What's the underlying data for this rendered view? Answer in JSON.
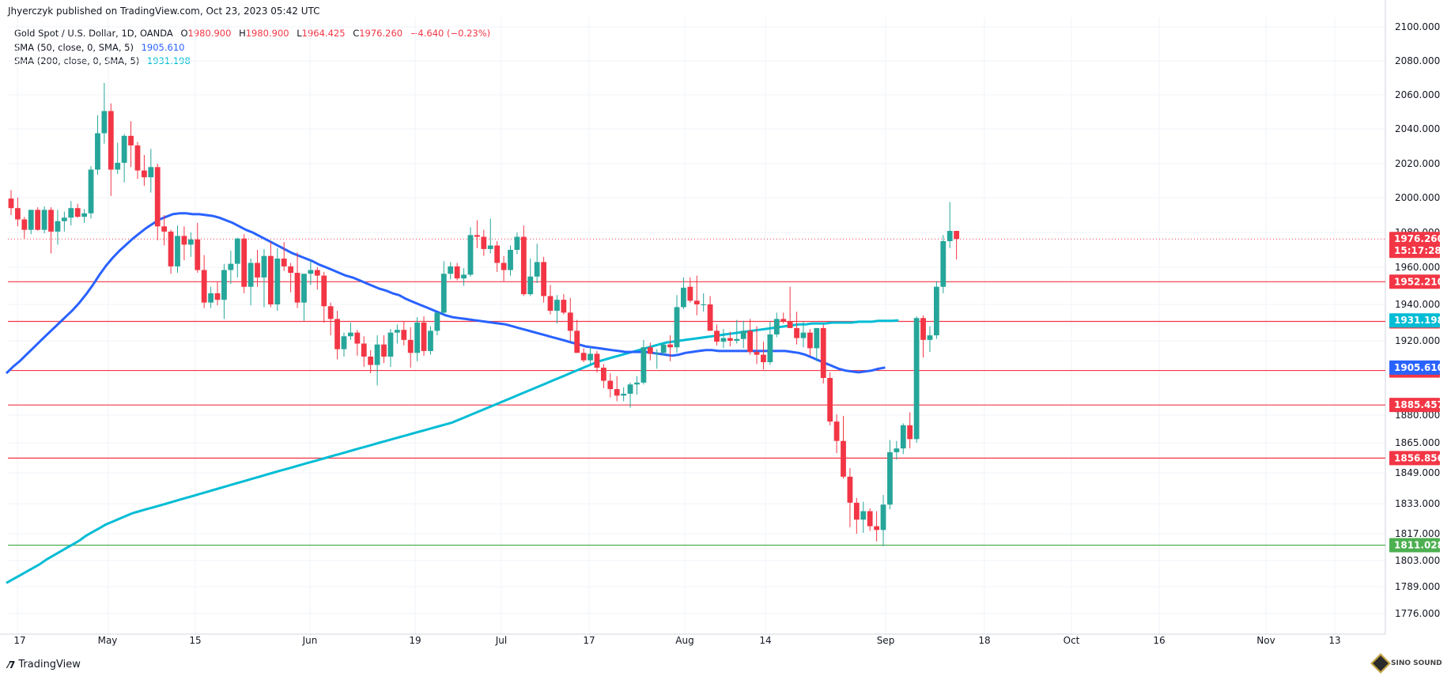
{
  "header": {
    "publisher": "Jhyerczyk published on TradingView.com, Oct 23, 2023 05:42 UTC"
  },
  "legend": {
    "symbol": "Gold Spot / U.S. Dollar, 1D, OANDA",
    "o_label": "O",
    "o_value": "1980.900",
    "h_label": "H",
    "h_value": "1980.900",
    "l_label": "L",
    "l_value": "1964.425",
    "c_label": "C",
    "c_value": "1976.260",
    "change": "−4.640 (−0.23%)",
    "sma50_label": "SMA (50, close, 0, SMA, 5)",
    "sma50_value": "1905.610",
    "sma200_label": "SMA (200, close, 0, SMA, 5)",
    "sma200_value": "1931.198"
  },
  "footer": {
    "brand": "TradingView",
    "watermark": "SINO SOUND"
  },
  "colors": {
    "up": "#26a69a",
    "down": "#f23645",
    "sma50": "#2962ff",
    "sma200": "#00bcd4",
    "level": "#f23645",
    "support": "#4caf50",
    "grid": "#f0f3fa"
  },
  "chart_data": {
    "type": "candlestick",
    "ylim": [
      1770,
      2105
    ],
    "y_ticks": [
      "2100.000",
      "2080.000",
      "2060.000",
      "2040.000",
      "2020.000",
      "2000.000",
      "1980.000",
      "1960.000",
      "1940.000",
      "1920.000",
      "1880.000",
      "1865.000",
      "1849.000",
      "1833.000",
      "1817.000",
      "1803.000",
      "1789.000",
      "1776.000"
    ],
    "x_ticks": [
      {
        "label": "17",
        "date": "2023-04-17"
      },
      {
        "label": "May",
        "date": "2023-05-01"
      },
      {
        "label": "15",
        "date": "2023-05-15"
      },
      {
        "label": "Jun",
        "date": "2023-06-01"
      },
      {
        "label": "19",
        "date": "2023-06-19"
      },
      {
        "label": "Jul",
        "date": "2023-07-03"
      },
      {
        "label": "17",
        "date": "2023-07-17"
      },
      {
        "label": "Aug",
        "date": "2023-08-01"
      },
      {
        "label": "14",
        "date": "2023-08-14"
      },
      {
        "label": "Sep",
        "date": "2023-09-01"
      },
      {
        "label": "18",
        "date": "2023-09-18"
      },
      {
        "label": "Oct",
        "date": "2023-10-02"
      },
      {
        "label": "16",
        "date": "2023-10-16"
      },
      {
        "label": "Nov",
        "date": "2023-11-01"
      },
      {
        "label": "13",
        "date": "2023-11-13"
      }
    ],
    "levels": [
      {
        "value": 1952.21,
        "label": "1952.210",
        "color": "#f23645"
      },
      {
        "value": 1930.644,
        "label": "1930.644",
        "color": "#f23645"
      },
      {
        "value": 1904.01,
        "label": "1904.010",
        "color": "#f23645"
      },
      {
        "value": 1885.457,
        "label": "1885.457",
        "color": "#f23645"
      },
      {
        "value": 1856.856,
        "label": "1856.856",
        "color": "#f23645"
      },
      {
        "value": 1811.028,
        "label": "1811.028",
        "color": "#4caf50"
      }
    ],
    "price_tag": {
      "value": 1976.26,
      "label": "1976.260",
      "countdown": "15:17:28",
      "color": "#f23645"
    },
    "sma_tags": [
      {
        "value": 1931.198,
        "label": "1931.198",
        "color": "#00bcd4"
      },
      {
        "value": 1905.61,
        "label": "1905.610",
        "color": "#2962ff"
      }
    ],
    "candles_ohlc": [
      [
        1999.5,
        2004.5,
        1990.0,
        1994.0
      ],
      [
        1994.0,
        2000.0,
        1983.5,
        1987.5
      ],
      [
        1987.5,
        1989.0,
        1976.5,
        1981.5
      ],
      [
        1981.5,
        1993.0,
        1979.0,
        1993.0
      ],
      [
        1993.0,
        1994.5,
        1981.0,
        1981.5
      ],
      [
        1981.5,
        1995.0,
        1979.5,
        1993.0
      ],
      [
        1993.0,
        1994.5,
        1968.0,
        1980.5
      ],
      [
        1980.5,
        1993.0,
        1973.0,
        1986.5
      ],
      [
        1986.5,
        1992.0,
        1980.5,
        1988.5
      ],
      [
        1988.5,
        1998.0,
        1984.0,
        1994.0
      ],
      [
        1994.0,
        1996.5,
        1988.5,
        1989.0
      ],
      [
        1989.0,
        1993.5,
        1985.5,
        1991.0
      ],
      [
        1991.0,
        2018.5,
        1988.0,
        2016.5
      ],
      [
        2016.5,
        2048.0,
        2013.5,
        2037.5
      ],
      [
        2037.5,
        2067.0,
        2031.5,
        2050.5
      ],
      [
        2050.5,
        2055.0,
        2001.0,
        2016.5
      ],
      [
        2016.5,
        2032.0,
        2014.0,
        2020.5
      ],
      [
        2020.5,
        2037.0,
        2009.0,
        2036.0
      ],
      [
        2036.0,
        2044.5,
        2018.0,
        2030.5
      ],
      [
        2030.5,
        2032.5,
        2011.0,
        2016.0
      ],
      [
        2016.0,
        2025.0,
        2007.0,
        2012.0
      ],
      [
        2012.0,
        2028.5,
        2003.0,
        2018.0
      ],
      [
        2018.0,
        2020.0,
        1975.5,
        1983.5
      ],
      [
        1983.5,
        1990.0,
        1972.5,
        1980.5
      ],
      [
        1980.5,
        1981.5,
        1956.5,
        1960.5
      ],
      [
        1960.5,
        1984.0,
        1957.0,
        1978.0
      ],
      [
        1978.0,
        1983.5,
        1964.0,
        1973.0
      ],
      [
        1973.0,
        1980.0,
        1966.0,
        1976.0
      ],
      [
        1976.0,
        1985.5,
        1957.0,
        1958.5
      ],
      [
        1958.5,
        1967.0,
        1938.0,
        1941.0
      ],
      [
        1941.0,
        1949.5,
        1938.0,
        1946.0
      ],
      [
        1946.0,
        1952.0,
        1939.5,
        1942.5
      ],
      [
        1942.5,
        1962.0,
        1932.0,
        1958.5
      ],
      [
        1958.5,
        1969.5,
        1951.0,
        1962.0
      ],
      [
        1962.0,
        1977.0,
        1954.5,
        1976.5
      ],
      [
        1976.5,
        1979.0,
        1946.0,
        1949.5
      ],
      [
        1949.5,
        1965.0,
        1939.5,
        1962.5
      ],
      [
        1962.5,
        1970.0,
        1949.5,
        1954.5
      ],
      [
        1954.5,
        1970.5,
        1938.5,
        1966.5
      ],
      [
        1966.5,
        1974.5,
        1938.5,
        1940.0
      ],
      [
        1940.0,
        1971.0,
        1936.5,
        1965.0
      ],
      [
        1965.0,
        1974.5,
        1958.0,
        1960.5
      ],
      [
        1960.5,
        1962.5,
        1946.5,
        1957.0
      ],
      [
        1957.0,
        1968.5,
        1938.0,
        1941.0
      ],
      [
        1941.0,
        1952.0,
        1931.0,
        1956.5
      ],
      [
        1956.5,
        1964.0,
        1950.5,
        1958.5
      ],
      [
        1958.5,
        1960.0,
        1948.0,
        1955.5
      ],
      [
        1955.5,
        1957.5,
        1930.0,
        1939.0
      ],
      [
        1939.0,
        1941.0,
        1923.0,
        1932.0
      ],
      [
        1932.0,
        1936.5,
        1910.0,
        1915.5
      ],
      [
        1915.5,
        1924.5,
        1911.5,
        1922.5
      ],
      [
        1922.5,
        1930.0,
        1920.5,
        1924.5
      ],
      [
        1924.5,
        1926.0,
        1912.0,
        1918.5
      ],
      [
        1918.5,
        1922.5,
        1906.0,
        1911.5
      ],
      [
        1911.5,
        1915.0,
        1902.5,
        1907.0
      ],
      [
        1907.0,
        1923.0,
        1896.0,
        1918.0
      ],
      [
        1918.0,
        1923.0,
        1908.0,
        1911.5
      ],
      [
        1911.5,
        1926.5,
        1906.0,
        1924.5
      ],
      [
        1924.5,
        1929.0,
        1918.5,
        1926.0
      ],
      [
        1926.0,
        1930.5,
        1917.5,
        1920.5
      ],
      [
        1920.5,
        1927.5,
        1905.5,
        1913.5
      ],
      [
        1913.5,
        1933.0,
        1909.0,
        1930.0
      ],
      [
        1930.0,
        1933.5,
        1912.0,
        1914.5
      ],
      [
        1914.5,
        1928.0,
        1912.5,
        1925.5
      ],
      [
        1925.5,
        1935.5,
        1923.0,
        1935.5
      ],
      [
        1935.5,
        1963.5,
        1934.5,
        1956.5
      ],
      [
        1956.5,
        1963.0,
        1953.5,
        1960.5
      ],
      [
        1960.5,
        1962.5,
        1953.0,
        1954.0
      ],
      [
        1954.0,
        1959.5,
        1950.0,
        1956.0
      ],
      [
        1956.0,
        1983.0,
        1955.0,
        1978.5
      ],
      [
        1978.5,
        1987.0,
        1971.0,
        1977.5
      ],
      [
        1977.5,
        1981.5,
        1966.5,
        1970.5
      ],
      [
        1970.5,
        1988.0,
        1968.0,
        1972.5
      ],
      [
        1972.5,
        1975.0,
        1957.5,
        1962.5
      ],
      [
        1962.5,
        1966.5,
        1952.5,
        1958.5
      ],
      [
        1958.5,
        1972.5,
        1955.5,
        1970.0
      ],
      [
        1970.0,
        1980.0,
        1967.5,
        1977.5
      ],
      [
        1977.5,
        1984.0,
        1944.5,
        1945.5
      ],
      [
        1945.5,
        1965.0,
        1944.5,
        1955.0
      ],
      [
        1955.0,
        1973.5,
        1951.5,
        1963.0
      ],
      [
        1963.0,
        1966.0,
        1941.0,
        1944.5
      ],
      [
        1944.5,
        1950.5,
        1934.5,
        1936.5
      ],
      [
        1936.5,
        1945.0,
        1929.5,
        1942.5
      ],
      [
        1942.5,
        1945.5,
        1934.5,
        1935.5
      ],
      [
        1935.5,
        1943.5,
        1920.0,
        1925.5
      ],
      [
        1925.5,
        1931.5,
        1913.5,
        1913.5
      ],
      [
        1913.5,
        1916.0,
        1908.5,
        1909.5
      ],
      [
        1909.5,
        1916.5,
        1907.0,
        1913.0
      ],
      [
        1913.0,
        1914.5,
        1903.0,
        1905.5
      ],
      [
        1905.5,
        1907.5,
        1894.5,
        1898.5
      ],
      [
        1898.5,
        1902.5,
        1889.5,
        1894.0
      ],
      [
        1894.0,
        1901.0,
        1887.5,
        1890.5
      ],
      [
        1890.5,
        1895.0,
        1887.5,
        1891.5
      ],
      [
        1891.5,
        1897.5,
        1884.0,
        1896.5
      ],
      [
        1896.5,
        1901.0,
        1891.0,
        1897.5
      ],
      [
        1897.5,
        1920.5,
        1896.5,
        1916.5
      ],
      [
        1916.5,
        1919.0,
        1909.5,
        1913.0
      ],
      [
        1913.0,
        1915.5,
        1905.0,
        1913.5
      ],
      [
        1913.5,
        1919.0,
        1912.0,
        1918.0
      ],
      [
        1918.0,
        1923.0,
        1909.0,
        1916.5
      ],
      [
        1916.5,
        1945.0,
        1913.5,
        1938.5
      ],
      [
        1938.5,
        1954.5,
        1937.5,
        1949.0
      ],
      [
        1949.5,
        1954.5,
        1941.0,
        1942.0
      ],
      [
        1942.0,
        1955.5,
        1934.0,
        1940.0
      ],
      [
        1940.0,
        1946.0,
        1936.0,
        1940.0
      ],
      [
        1940.0,
        1944.5,
        1928.0,
        1925.5
      ],
      [
        1925.5,
        1929.0,
        1917.5,
        1919.5
      ],
      [
        1919.5,
        1926.5,
        1916.0,
        1921.5
      ],
      [
        1921.5,
        1925.0,
        1917.0,
        1920.0
      ],
      [
        1920.0,
        1931.5,
        1918.5,
        1921.0
      ],
      [
        1921.0,
        1931.0,
        1916.0,
        1925.5
      ],
      [
        1925.5,
        1932.0,
        1912.5,
        1914.0
      ],
      [
        1914.0,
        1928.0,
        1907.5,
        1912.5
      ],
      [
        1912.5,
        1919.5,
        1904.5,
        1908.5
      ],
      [
        1908.5,
        1930.5,
        1907.0,
        1923.5
      ],
      [
        1923.5,
        1935.5,
        1922.0,
        1932.0
      ],
      [
        1932.0,
        1935.5,
        1929.5,
        1930.5
      ],
      [
        1930.5,
        1949.5,
        1927.0,
        1927.0
      ],
      [
        1927.0,
        1936.0,
        1918.0,
        1921.5
      ],
      [
        1921.5,
        1930.5,
        1916.5,
        1924.5
      ],
      [
        1924.5,
        1926.5,
        1912.0,
        1916.0
      ],
      [
        1916.0,
        1926.5,
        1909.0,
        1927.0
      ],
      [
        1927.0,
        1929.0,
        1897.0,
        1900.0
      ],
      [
        1900.0,
        1903.0,
        1874.5,
        1876.5
      ],
      [
        1876.5,
        1880.5,
        1859.5,
        1866.0
      ],
      [
        1866.0,
        1879.5,
        1846.0,
        1847.0
      ],
      [
        1847.0,
        1851.5,
        1820.5,
        1833.5
      ],
      [
        1833.5,
        1836.0,
        1817.0,
        1824.5
      ],
      [
        1824.5,
        1834.0,
        1817.5,
        1829.0
      ],
      [
        1829.0,
        1830.5,
        1818.5,
        1821.0
      ],
      [
        1821.0,
        1829.0,
        1813.0,
        1819.0
      ],
      [
        1819.0,
        1837.5,
        1810.5,
        1832.5
      ],
      [
        1832.5,
        1866.5,
        1830.0,
        1860.0
      ],
      [
        1860.0,
        1866.0,
        1856.0,
        1862.0
      ],
      [
        1862.0,
        1875.5,
        1859.0,
        1874.5
      ],
      [
        1874.5,
        1881.5,
        1862.0,
        1867.0
      ],
      [
        1867.0,
        1933.5,
        1865.0,
        1932.5
      ],
      [
        1932.5,
        1934.0,
        1911.0,
        1920.5
      ],
      [
        1920.5,
        1928.0,
        1914.0,
        1923.0
      ],
      [
        1923.0,
        1952.5,
        1921.0,
        1949.5
      ],
      [
        1949.5,
        1978.5,
        1946.0,
        1975.0
      ],
      [
        1975.0,
        1997.5,
        1971.0,
        1980.9
      ],
      [
        1980.9,
        1980.9,
        1964.425,
        1976.26
      ]
    ],
    "sma50": [
      1902.5,
      1906.0,
      1909.0,
      1912.5,
      1916.0,
      1919.5,
      1923.0,
      1926.5,
      1930.0,
      1933.5,
      1937.0,
      1941.0,
      1945.5,
      1950.5,
      1956.0,
      1961.0,
      1965.5,
      1969.5,
      1973.0,
      1976.5,
      1979.5,
      1982.5,
      1985.0,
      1987.5,
      1989.0,
      1990.5,
      1991.0,
      1991.0,
      1990.5,
      1990.5,
      1990.0,
      1989.5,
      1988.5,
      1987.0,
      1985.5,
      1983.5,
      1981.5,
      1980.0,
      1978.0,
      1976.0,
      1974.0,
      1972.0,
      1970.0,
      1968.0,
      1966.5,
      1965.0,
      1963.5,
      1961.5,
      1960.0,
      1958.5,
      1957.0,
      1955.5,
      1954.5,
      1953.0,
      1951.5,
      1950.0,
      1948.5,
      1947.5,
      1946.0,
      1945.0,
      1943.0,
      1941.5,
      1940.0,
      1938.5,
      1937.0,
      1935.5,
      1934.0,
      1933.0,
      1932.5,
      1932.0,
      1931.5,
      1931.0,
      1930.5,
      1930.0,
      1929.5,
      1929.0,
      1928.0,
      1927.0,
      1926.0,
      1925.0,
      1924.0,
      1923.0,
      1922.0,
      1921.0,
      1920.0,
      1919.0,
      1918.0,
      1917.0,
      1916.5,
      1916.0,
      1915.5,
      1915.0,
      1914.5,
      1914.0,
      1914.0,
      1914.0,
      1914.0,
      1913.5,
      1913.0,
      1912.5,
      1912.0,
      1912.5,
      1913.5,
      1914.0,
      1914.5,
      1915.0,
      1915.0,
      1914.5,
      1914.5,
      1914.5,
      1914.5,
      1914.5,
      1914.5,
      1914.5,
      1914.5,
      1914.5,
      1914.5,
      1914.5,
      1914.0,
      1913.5,
      1912.5,
      1911.0,
      1909.5,
      1908.0,
      1906.5,
      1905.0,
      1904.0,
      1903.5,
      1903.0,
      1903.5,
      1904.0,
      1905.0,
      1905.61
    ],
    "sma200": [
      1791.0,
      1793.0,
      1795.0,
      1797.0,
      1799.0,
      1801.0,
      1803.5,
      1805.5,
      1807.5,
      1809.5,
      1811.5,
      1813.5,
      1816.0,
      1818.0,
      1820.0,
      1822.0,
      1823.5,
      1825.0,
      1826.5,
      1828.0,
      1829.0,
      1830.0,
      1831.0,
      1832.0,
      1833.0,
      1834.0,
      1835.0,
      1836.0,
      1837.0,
      1838.0,
      1839.0,
      1840.0,
      1841.0,
      1842.0,
      1843.0,
      1844.0,
      1845.0,
      1846.0,
      1847.0,
      1848.0,
      1849.0,
      1850.0,
      1851.0,
      1852.0,
      1853.0,
      1854.0,
      1855.0,
      1856.0,
      1857.0,
      1858.0,
      1859.0,
      1860.0,
      1861.0,
      1862.0,
      1863.0,
      1864.0,
      1865.0,
      1866.0,
      1867.0,
      1868.0,
      1869.0,
      1870.0,
      1871.0,
      1872.0,
      1873.0,
      1874.0,
      1875.0,
      1876.0,
      1877.5,
      1879.0,
      1880.5,
      1882.0,
      1883.5,
      1885.0,
      1886.5,
      1888.0,
      1889.5,
      1891.0,
      1892.5,
      1894.0,
      1895.5,
      1897.0,
      1898.5,
      1900.0,
      1901.5,
      1903.0,
      1904.5,
      1906.0,
      1907.5,
      1909.0,
      1910.0,
      1911.0,
      1912.0,
      1913.0,
      1914.0,
      1915.0,
      1916.0,
      1917.0,
      1918.0,
      1919.0,
      1919.5,
      1920.0,
      1920.5,
      1921.0,
      1921.5,
      1922.0,
      1922.5,
      1923.0,
      1923.5,
      1924.0,
      1924.5,
      1925.0,
      1925.5,
      1926.0,
      1926.5,
      1927.0,
      1927.5,
      1928.0,
      1928.5,
      1929.0,
      1929.0,
      1929.5,
      1929.5,
      1929.5,
      1930.0,
      1930.0,
      1930.0,
      1930.0,
      1930.5,
      1930.5,
      1930.5,
      1931.0,
      1931.0,
      1931.0,
      1931.198
    ]
  }
}
